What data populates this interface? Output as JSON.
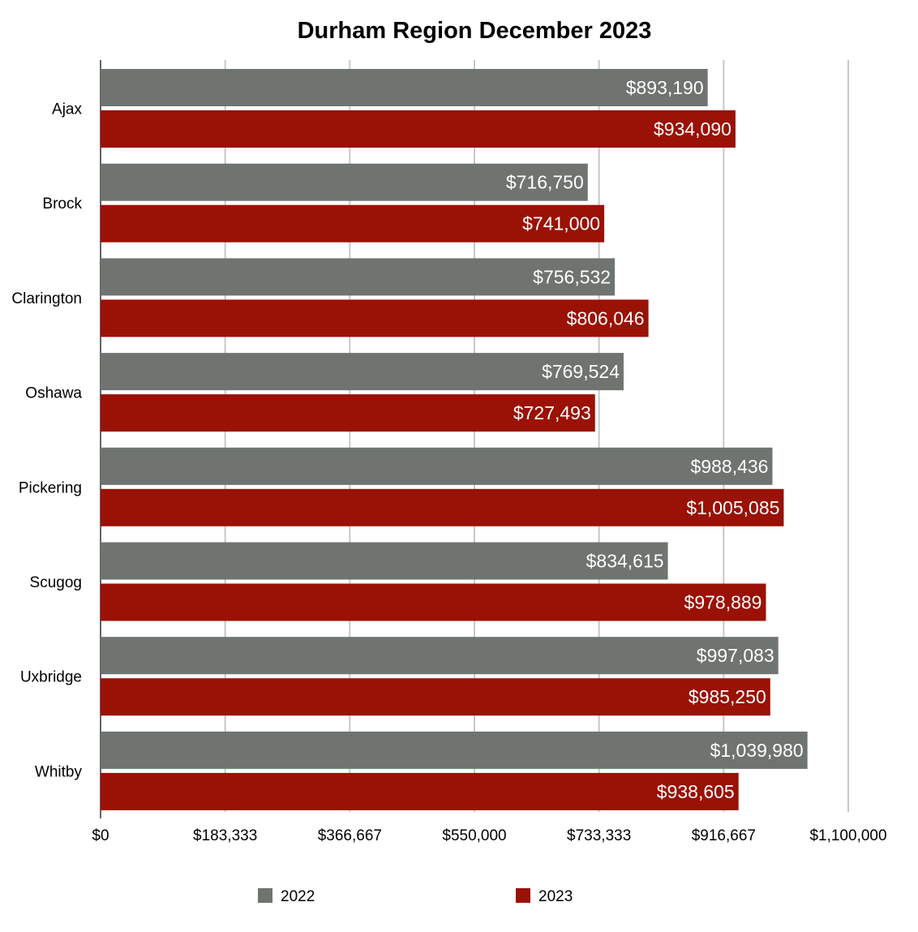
{
  "chart_data": {
    "type": "bar",
    "orientation": "horizontal",
    "title": "Durham Region December 2023",
    "xlabel": "",
    "ylabel": "",
    "categories": [
      "Ajax",
      "Brock",
      "Clarington",
      "Oshawa",
      "Pickering",
      "Scugog",
      "Uxbridge",
      "Whitby"
    ],
    "series": [
      {
        "name": "2022",
        "color": "#6f7470",
        "values": [
          893190,
          716750,
          756532,
          769524,
          988436,
          834615,
          997083,
          1039980
        ],
        "labels": [
          "$893,190",
          "$716,750",
          "$756,532",
          "$769,524",
          "$988,436",
          "$834,615",
          "$997,083",
          "$1,039,980"
        ]
      },
      {
        "name": "2023",
        "color": "#9a1106",
        "values": [
          934090,
          741000,
          806046,
          727493,
          1005085,
          978889,
          985250,
          938605
        ],
        "labels": [
          "$934,090",
          "$741,000",
          "$806,046",
          "$727,493",
          "$1,005,085",
          "$978,889",
          "$985,250",
          "$938,605"
        ]
      }
    ],
    "xlim": [
      0,
      1100000
    ],
    "ticks": [
      0,
      183333,
      366667,
      550000,
      733333,
      916667,
      1100000
    ],
    "tick_labels": [
      "$0",
      "$183,333",
      "$366,667",
      "$550,000",
      "$733,333",
      "$916,667",
      "$1,100,000"
    ],
    "grid": true,
    "legend_position": "bottom"
  }
}
